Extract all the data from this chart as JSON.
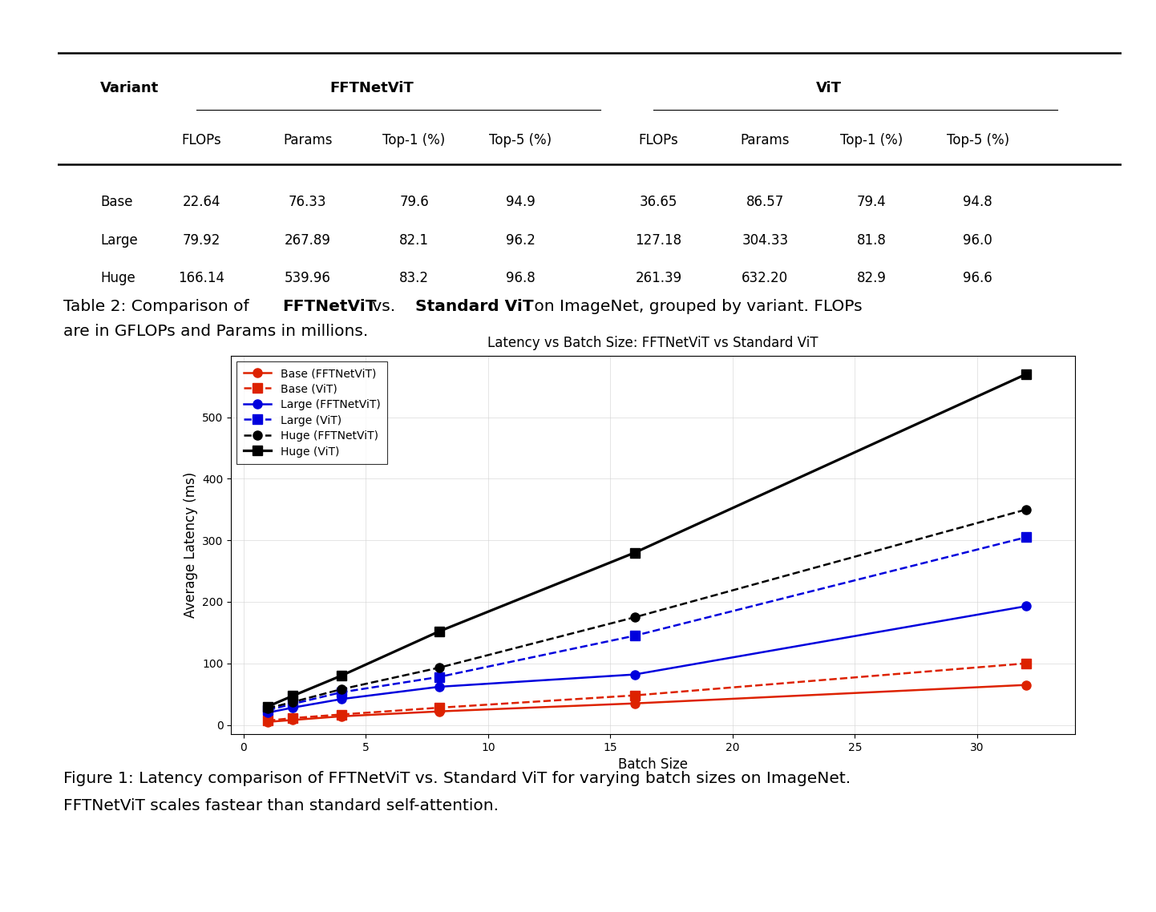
{
  "table": {
    "rows": [
      [
        "Base",
        "22.64",
        "76.33",
        "79.6",
        "94.9",
        "36.65",
        "86.57",
        "79.4",
        "94.8"
      ],
      [
        "Large",
        "79.92",
        "267.89",
        "82.1",
        "96.2",
        "127.18",
        "304.33",
        "81.8",
        "96.0"
      ],
      [
        "Huge",
        "166.14",
        "539.96",
        "83.2",
        "96.8",
        "261.39",
        "632.20",
        "82.9",
        "96.6"
      ]
    ]
  },
  "chart_title": "Latency vs Batch Size: FFTNetViT vs Standard ViT",
  "xlabel": "Batch Size",
  "ylabel": "Average Latency (ms)",
  "batch_sizes": [
    1,
    2,
    4,
    8,
    16,
    32
  ],
  "series": {
    "base_fftnet": [
      5,
      8,
      14,
      22,
      35,
      65
    ],
    "base_vit": [
      7,
      11,
      17,
      28,
      48,
      100
    ],
    "large_fftnet": [
      20,
      28,
      42,
      62,
      82,
      193
    ],
    "large_vit": [
      24,
      34,
      53,
      78,
      145,
      305
    ],
    "huge_fftnet": [
      27,
      37,
      58,
      93,
      175,
      350
    ],
    "huge_vit": [
      30,
      47,
      80,
      152,
      280,
      570
    ]
  },
  "colors": {
    "base": "#dd2200",
    "large": "#0000dd",
    "huge": "#000000"
  },
  "table_cap_parts": [
    [
      "Table 2: Comparison of ",
      false
    ],
    [
      "FFTNetViT",
      true
    ],
    [
      " vs. ",
      false
    ],
    [
      "Standard ViT",
      true
    ],
    [
      " on ImageNet, grouped by variant. FLOPs",
      false
    ]
  ],
  "table_cap_line2": "are in GFLOPs and Params in millions.",
  "fig_cap_line1": "Figure 1: Latency comparison of FFTNetViT vs. Standard ViT for varying batch sizes on ImageNet.",
  "fig_cap_line2": "FFTNetViT scales fastear than standard self-attention."
}
